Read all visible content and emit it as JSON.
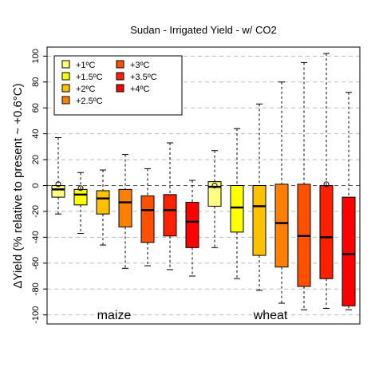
{
  "chart_data": {
    "type": "box",
    "title": "Sudan - Irrigated Yield - w/ CO2",
    "ylabel": "ΔYield (% relative to present ~ +0.6°C)",
    "xlabel": "",
    "ylim": [
      -107,
      107
    ],
    "yticks": [
      100,
      80,
      60,
      40,
      20,
      0,
      -20,
      -40,
      -60,
      -80,
      -100
    ],
    "grid": "horizontal dashed",
    "legend_position": "top-left",
    "groups": [
      {
        "label": "maize",
        "position": 3.5
      },
      {
        "label": "wheat",
        "position": 10.5
      }
    ],
    "series": [
      {
        "name": "+1ºC",
        "color": "#FFFF80"
      },
      {
        "name": "+1.5ºC",
        "color": "#FFFF00"
      },
      {
        "name": "+2ºC",
        "color": "#FFC000"
      },
      {
        "name": "+2.5ºC",
        "color": "#FF8000"
      },
      {
        "name": "+3ºC",
        "color": "#FF5000"
      },
      {
        "name": "+3.5ºC",
        "color": "#FF2000"
      },
      {
        "name": "+4ºC",
        "color": "#FF0000"
      }
    ],
    "boxes": [
      {
        "group": "maize",
        "series": 0,
        "min": -22,
        "q1": -9,
        "median": -3,
        "q3": 0,
        "max": 37,
        "outliers": [
          1
        ]
      },
      {
        "group": "maize",
        "series": 1,
        "min": -37,
        "q1": -15,
        "median": -7,
        "q3": -3,
        "max": 10,
        "outliers": [
          -2
        ]
      },
      {
        "group": "maize",
        "series": 2,
        "min": -46,
        "q1": -22,
        "median": -10,
        "q3": -4,
        "max": 12,
        "outliers": []
      },
      {
        "group": "maize",
        "series": 3,
        "min": -64,
        "q1": -32,
        "median": -13,
        "q3": -3,
        "max": 24,
        "outliers": []
      },
      {
        "group": "maize",
        "series": 4,
        "min": -62,
        "q1": -44,
        "median": -19,
        "q3": -8,
        "max": 13,
        "outliers": []
      },
      {
        "group": "maize",
        "series": 5,
        "min": -65,
        "q1": -39,
        "median": -19,
        "q3": -7,
        "max": 33,
        "outliers": []
      },
      {
        "group": "maize",
        "series": 6,
        "min": -70,
        "q1": -48,
        "median": -28,
        "q3": -13,
        "max": 4,
        "outliers": []
      },
      {
        "group": "wheat",
        "series": 0,
        "min": -48,
        "q1": -16,
        "median": -1,
        "q3": 3,
        "max": 27,
        "outliers": [
          0
        ]
      },
      {
        "group": "wheat",
        "series": 1,
        "min": -72,
        "q1": -36,
        "median": -17,
        "q3": 0,
        "max": 44,
        "outliers": []
      },
      {
        "group": "wheat",
        "series": 2,
        "min": -81,
        "q1": -54,
        "median": -16,
        "q3": 0,
        "max": 63,
        "outliers": []
      },
      {
        "group": "wheat",
        "series": 3,
        "min": -91,
        "q1": -63,
        "median": -29,
        "q3": 1,
        "max": 80,
        "outliers": []
      },
      {
        "group": "wheat",
        "series": 4,
        "min": -96,
        "q1": -78,
        "median": -39,
        "q3": 1,
        "max": 95,
        "outliers": []
      },
      {
        "group": "wheat",
        "series": 5,
        "min": -95,
        "q1": -72,
        "median": -40,
        "q3": 0,
        "max": 102,
        "outliers": [
          1
        ]
      },
      {
        "group": "wheat",
        "series": 6,
        "min": -96,
        "q1": -93,
        "median": -53,
        "q3": -9,
        "max": 72,
        "outliers": []
      }
    ]
  }
}
